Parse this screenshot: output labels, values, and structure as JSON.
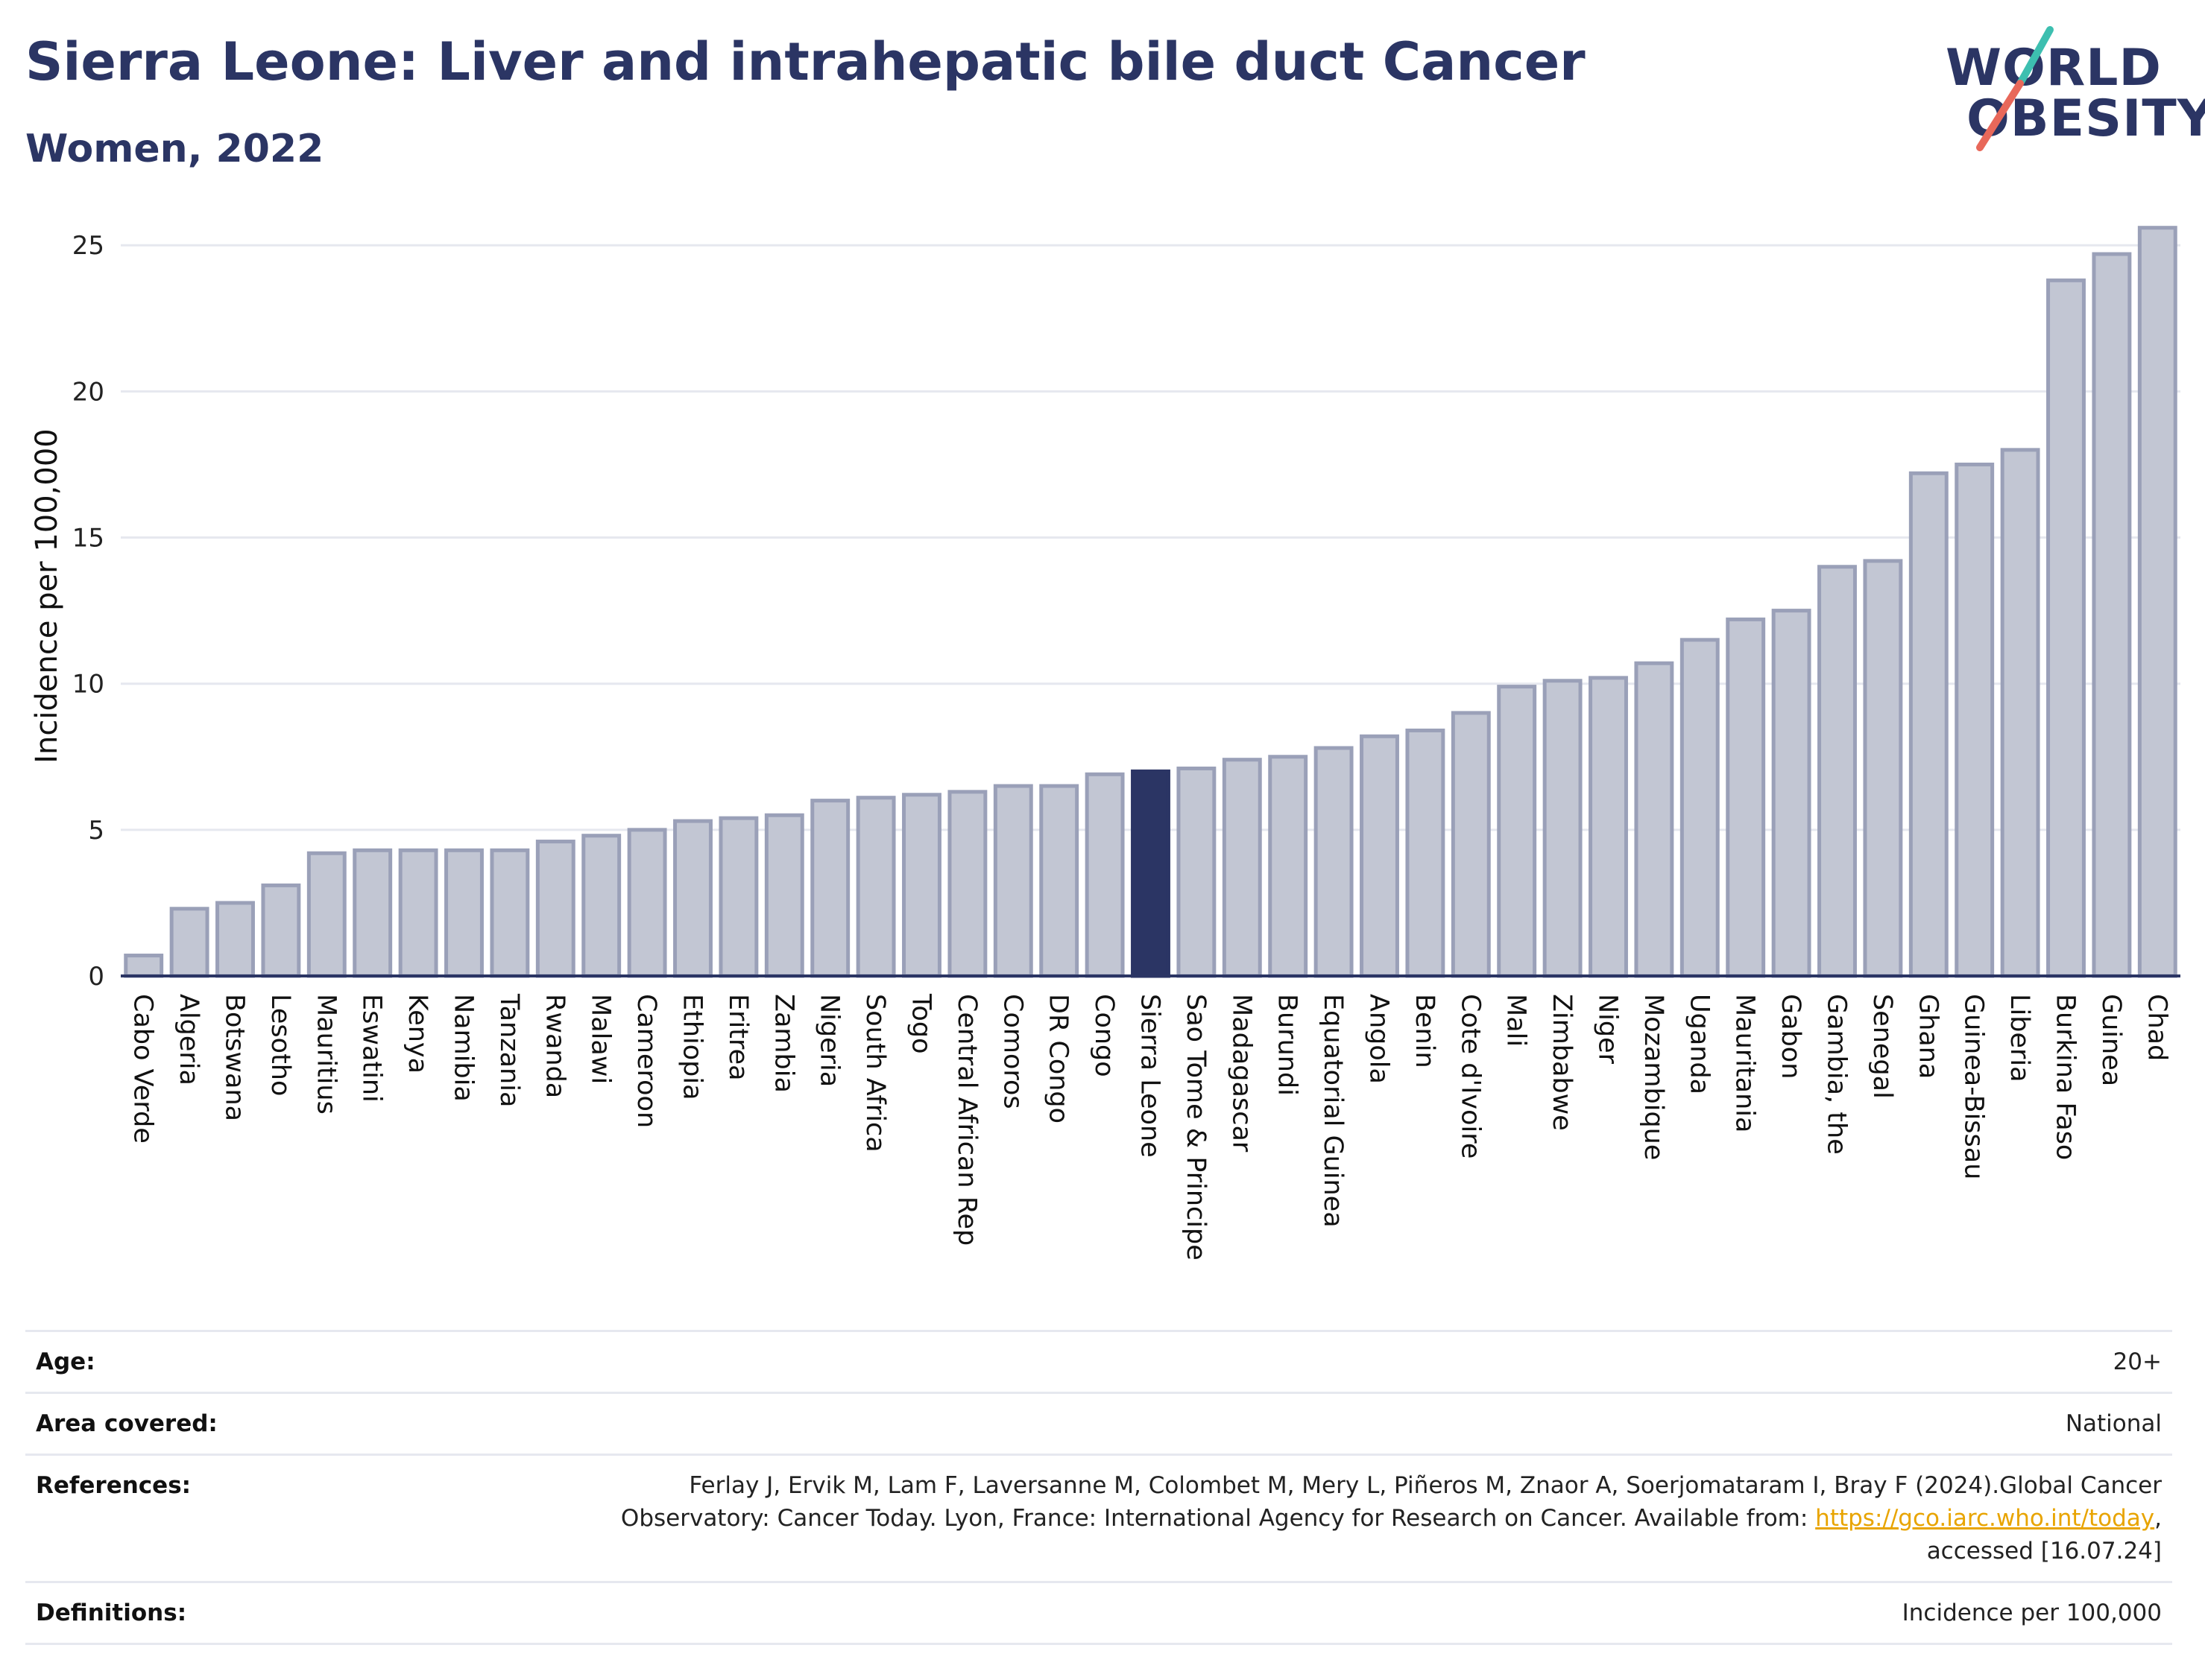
{
  "header": {
    "title": "Sierra Leone: Liver and intrahepatic bile duct Cancer",
    "subtitle": "Women, 2022"
  },
  "logo": {
    "line1": "WORLD",
    "line2": "OBESITY",
    "colors": {
      "text": "#2b3564",
      "slash_top": "#3dbfb0",
      "slash_bottom": "#e8685a"
    }
  },
  "chart_data": {
    "type": "bar",
    "ylabel": "Incidence per 100,000",
    "ylim": [
      0,
      26
    ],
    "yticks": [
      0,
      5,
      10,
      15,
      20,
      25
    ],
    "grid": true,
    "highlight": "Sierra Leone",
    "colors": {
      "bar": "#c2c6d3",
      "bar_edge": "#9aa0b8",
      "highlight": "#2b3564",
      "grid": "#e6e8ef"
    },
    "categories": [
      "Cabo Verde",
      "Algeria",
      "Botswana",
      "Lesotho",
      "Mauritius",
      "Eswatini",
      "Kenya",
      "Namibia",
      "Tanzania",
      "Rwanda",
      "Malawi",
      "Cameroon",
      "Ethiopia",
      "Eritrea",
      "Zambia",
      "Nigeria",
      "South Africa",
      "Togo",
      "Central African Rep",
      "Comoros",
      "DR Congo",
      "Congo",
      "Sierra Leone",
      "Sao Tome & Principe",
      "Madagascar",
      "Burundi",
      "Equatorial Guinea",
      "Angola",
      "Benin",
      "Cote d'Ivoire",
      "Mali",
      "Zimbabwe",
      "Niger",
      "Mozambique",
      "Uganda",
      "Mauritania",
      "Gabon",
      "Gambia, the",
      "Senegal",
      "Ghana",
      "Guinea-Bissau",
      "Liberia",
      "Burkina Faso",
      "Guinea",
      "Chad"
    ],
    "values": [
      0.7,
      2.3,
      2.5,
      3.1,
      4.2,
      4.3,
      4.3,
      4.3,
      4.3,
      4.6,
      4.8,
      5.0,
      5.3,
      5.4,
      5.5,
      6.0,
      6.1,
      6.2,
      6.3,
      6.5,
      6.5,
      6.9,
      7.0,
      7.1,
      7.4,
      7.5,
      7.8,
      8.2,
      8.4,
      9.0,
      9.9,
      10.1,
      10.2,
      10.7,
      11.5,
      12.2,
      12.5,
      14.0,
      14.2,
      17.2,
      17.5,
      18.0,
      23.8,
      24.7,
      25.6
    ]
  },
  "info": {
    "age_label": "Age:",
    "age_value": "20+",
    "area_label": "Area covered:",
    "area_value": "National",
    "references_label": "References:",
    "references_line1": "Ferlay J, Ervik M, Lam F, Laversanne M, Colombet M, Mery L, Piñeros M, Znaor A, Soerjomataram I, Bray F (2024).Global Cancer",
    "references_line2_pre": "Observatory: Cancer Today. Lyon, France: International Agency for Research on Cancer. Available from: ",
    "references_link": "https://gco.iarc.who.int/today",
    "references_line2_post": ",",
    "references_line3": "accessed [16.07.24]",
    "definitions_label": "Definitions:",
    "definitions_value": "Incidence per 100,000"
  }
}
